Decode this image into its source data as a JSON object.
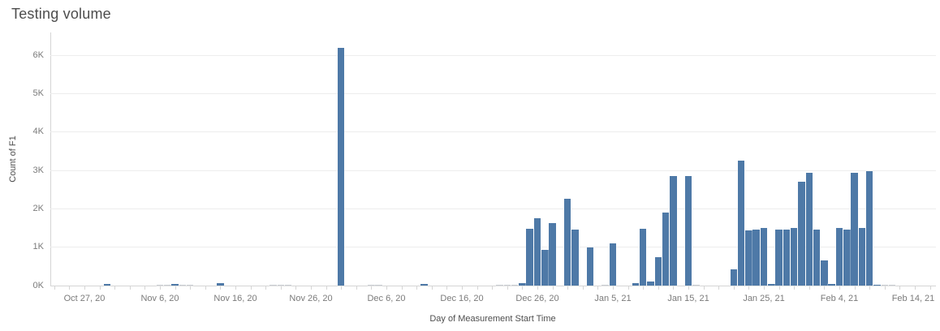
{
  "page": {
    "title": "Testing volume"
  },
  "colors": {
    "bar": "#4e79a7",
    "tiny_bar": "#c8ccd1",
    "gridline": "#ededed",
    "axis_line": "#d5d5d5",
    "tick_label": "#7b7b7b",
    "title_text": "#4d4d4d"
  },
  "chart_data": {
    "type": "bar",
    "title": "Testing volume",
    "xlabel": "Day of Measurement Start Time",
    "ylabel": "Count of F1",
    "ylim": [
      0,
      6600
    ],
    "grid": "horizontal",
    "legend": "none",
    "y_ticks": [
      {
        "value": 0,
        "label": "0K"
      },
      {
        "value": 1000,
        "label": "1K"
      },
      {
        "value": 2000,
        "label": "2K"
      },
      {
        "value": 3000,
        "label": "3K"
      },
      {
        "value": 4000,
        "label": "4K"
      },
      {
        "value": 5000,
        "label": "5K"
      },
      {
        "value": 6000,
        "label": "6K"
      }
    ],
    "x_ticks": [
      {
        "date": "2020-10-27",
        "label": "Oct 27, 20"
      },
      {
        "date": "2020-11-06",
        "label": "Nov 6, 20"
      },
      {
        "date": "2020-11-16",
        "label": "Nov 16, 20"
      },
      {
        "date": "2020-11-26",
        "label": "Nov 26, 20"
      },
      {
        "date": "2020-12-06",
        "label": "Dec 6, 20"
      },
      {
        "date": "2020-12-16",
        "label": "Dec 16, 20"
      },
      {
        "date": "2020-12-26",
        "label": "Dec 26, 20"
      },
      {
        "date": "2021-01-05",
        "label": "Jan 5, 21"
      },
      {
        "date": "2021-01-15",
        "label": "Jan 15, 21"
      },
      {
        "date": "2021-01-25",
        "label": "Jan 25, 21"
      },
      {
        "date": "2021-02-04",
        "label": "Feb 4, 21"
      },
      {
        "date": "2021-02-14",
        "label": "Feb 14, 21"
      }
    ],
    "bars": [
      {
        "date": "2020-10-30",
        "value": 40
      },
      {
        "date": "2020-11-06",
        "value": 12
      },
      {
        "date": "2020-11-07",
        "value": 15
      },
      {
        "date": "2020-11-08",
        "value": 35
      },
      {
        "date": "2020-11-09",
        "value": 15
      },
      {
        "date": "2020-11-10",
        "value": 12
      },
      {
        "date": "2020-11-14",
        "value": 55
      },
      {
        "date": "2020-11-21",
        "value": 14
      },
      {
        "date": "2020-11-22",
        "value": 14
      },
      {
        "date": "2020-11-23",
        "value": 12
      },
      {
        "date": "2020-11-30",
        "value": 6200
      },
      {
        "date": "2020-12-04",
        "value": 16
      },
      {
        "date": "2020-12-05",
        "value": 12
      },
      {
        "date": "2020-12-11",
        "value": 45
      },
      {
        "date": "2020-12-21",
        "value": 18
      },
      {
        "date": "2020-12-22",
        "value": 18
      },
      {
        "date": "2020-12-23",
        "value": 18
      },
      {
        "date": "2020-12-24",
        "value": 65
      },
      {
        "date": "2020-12-25",
        "value": 1480
      },
      {
        "date": "2020-12-26",
        "value": 1760
      },
      {
        "date": "2020-12-27",
        "value": 930
      },
      {
        "date": "2020-12-28",
        "value": 1620
      },
      {
        "date": "2020-12-30",
        "value": 2260
      },
      {
        "date": "2020-12-31",
        "value": 1460
      },
      {
        "date": "2021-01-02",
        "value": 1000
      },
      {
        "date": "2021-01-04",
        "value": 18
      },
      {
        "date": "2021-01-05",
        "value": 1100
      },
      {
        "date": "2021-01-08",
        "value": 60
      },
      {
        "date": "2021-01-09",
        "value": 1480
      },
      {
        "date": "2021-01-10",
        "value": 110
      },
      {
        "date": "2021-01-11",
        "value": 740
      },
      {
        "date": "2021-01-12",
        "value": 1900
      },
      {
        "date": "2021-01-13",
        "value": 2860
      },
      {
        "date": "2021-01-15",
        "value": 2850
      },
      {
        "date": "2021-01-16",
        "value": 18
      },
      {
        "date": "2021-01-21",
        "value": 430
      },
      {
        "date": "2021-01-22",
        "value": 3250
      },
      {
        "date": "2021-01-23",
        "value": 1440
      },
      {
        "date": "2021-01-24",
        "value": 1450
      },
      {
        "date": "2021-01-25",
        "value": 1500
      },
      {
        "date": "2021-01-26",
        "value": 50
      },
      {
        "date": "2021-01-27",
        "value": 1450
      },
      {
        "date": "2021-01-28",
        "value": 1460
      },
      {
        "date": "2021-01-29",
        "value": 1500
      },
      {
        "date": "2021-01-30",
        "value": 2700
      },
      {
        "date": "2021-01-31",
        "value": 2930
      },
      {
        "date": "2021-02-01",
        "value": 1450
      },
      {
        "date": "2021-02-02",
        "value": 650
      },
      {
        "date": "2021-02-03",
        "value": 45
      },
      {
        "date": "2021-02-04",
        "value": 1500
      },
      {
        "date": "2021-02-05",
        "value": 1450
      },
      {
        "date": "2021-02-06",
        "value": 2930
      },
      {
        "date": "2021-02-07",
        "value": 1500
      },
      {
        "date": "2021-02-08",
        "value": 2970
      },
      {
        "date": "2021-02-09",
        "value": 30
      },
      {
        "date": "2021-02-10",
        "value": 15
      },
      {
        "date": "2021-02-11",
        "value": 12
      }
    ]
  }
}
